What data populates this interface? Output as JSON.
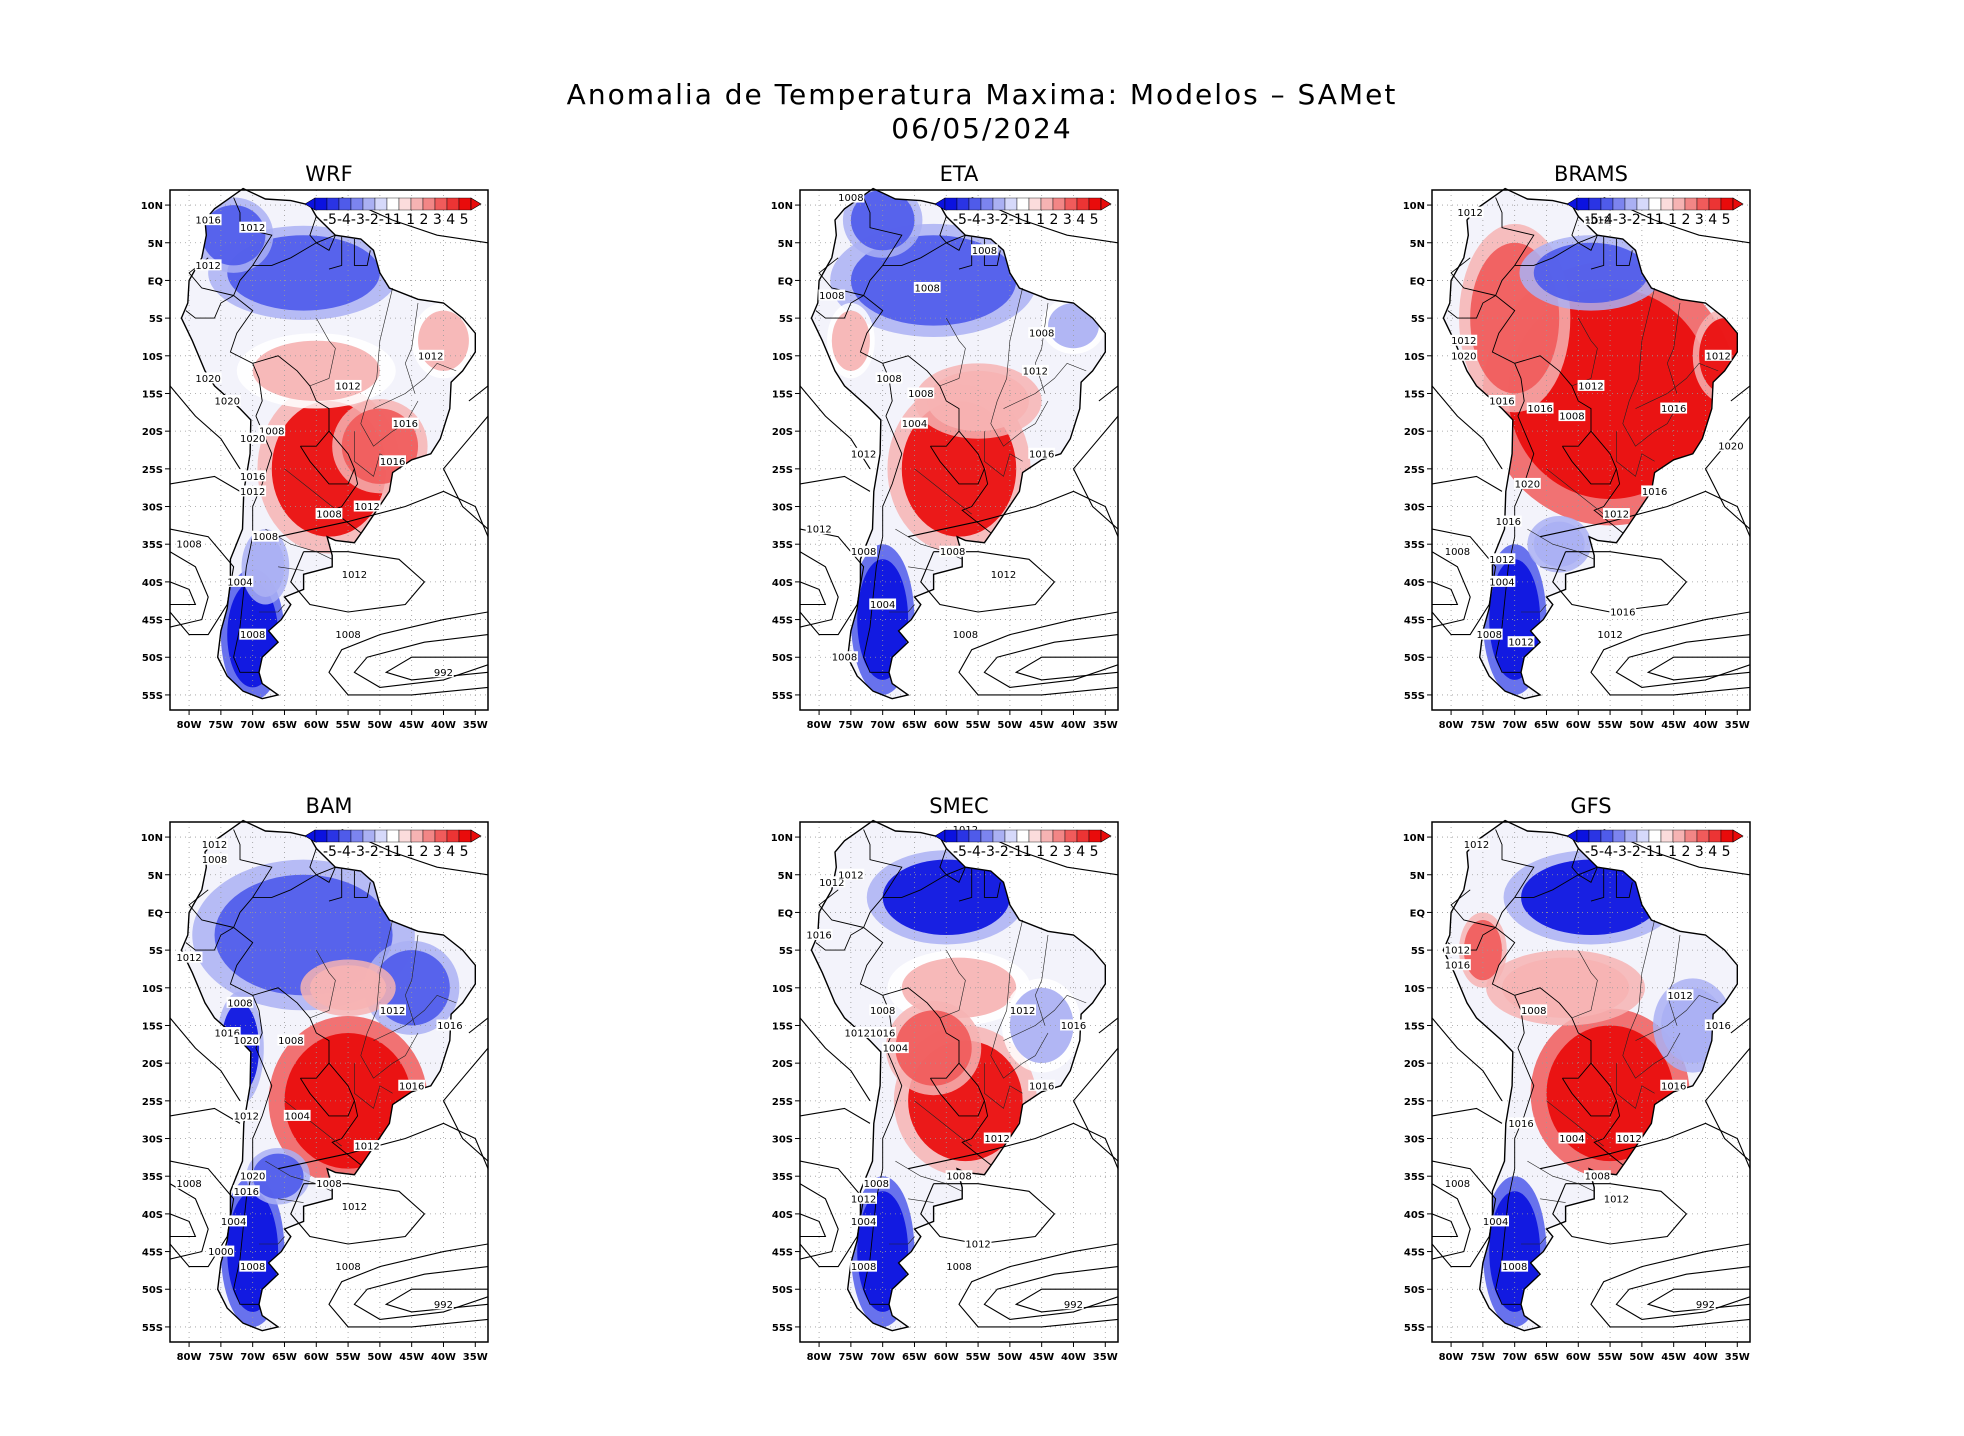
{
  "title": {
    "line1": "Anomalia de Temperatura Maxima: Modelos – SAMet",
    "line2": "06/05/2024"
  },
  "colors": {
    "cold_strong": "#0b12e0",
    "cold_mid": "#4f5bea",
    "cold_light": "#aab0f3",
    "neutral": "#ffffff",
    "warm_light": "#f6b3b3",
    "warm_mid": "#f05b5b",
    "warm_strong": "#e90b0b",
    "coast": "#000000"
  },
  "map_extent": {
    "lon_min": -83,
    "lon_max": -33,
    "lat_min": -57,
    "lat_max": 12
  },
  "axes": {
    "lat_labels": [
      "10N",
      "5N",
      "EQ",
      "5S",
      "10S",
      "15S",
      "20S",
      "25S",
      "30S",
      "35S",
      "40S",
      "45S",
      "50S",
      "55S"
    ],
    "lat_values": [
      10,
      5,
      0,
      -5,
      -10,
      -15,
      -20,
      -25,
      -30,
      -35,
      -40,
      -45,
      -50,
      -55
    ],
    "lon_labels": [
      "80W",
      "75W",
      "70W",
      "65W",
      "60W",
      "55W",
      "50W",
      "45W",
      "40W",
      "35W"
    ],
    "lon_values": [
      -80,
      -75,
      -70,
      -65,
      -60,
      -55,
      -50,
      -45,
      -40,
      -35
    ]
  },
  "colorbar": {
    "labels": [
      "-5",
      "-4",
      "-3",
      "-2",
      "-1",
      "1",
      "1",
      "2",
      "3",
      "4",
      "5"
    ],
    "display": "-5-4-3-2-11 1 2 3 4 5"
  },
  "panels": [
    {
      "name": "WRF",
      "anomalies": [
        {
          "lon": -58,
          "lat": -25,
          "value": 4.5,
          "rx": 9,
          "ry": 9
        },
        {
          "lon": -50,
          "lat": -22,
          "value": 3.5,
          "rx": 6,
          "ry": 5
        },
        {
          "lon": -60,
          "lat": -12,
          "value": 1.5,
          "rx": 10,
          "ry": 4
        },
        {
          "lon": -62,
          "lat": 1,
          "value": -3.0,
          "rx": 12,
          "ry": 5
        },
        {
          "lon": -73,
          "lat": 6,
          "value": -2.5,
          "rx": 5,
          "ry": 4
        },
        {
          "lon": -70,
          "lat": -47,
          "value": -5.0,
          "rx": 4,
          "ry": 7
        },
        {
          "lon": -68,
          "lat": -38,
          "value": -2.0,
          "rx": 3,
          "ry": 4
        },
        {
          "lon": -40,
          "lat": -8,
          "value": 1.0,
          "rx": 4,
          "ry": 4
        }
      ],
      "isobar_labels": [
        {
          "text": "1016",
          "lon": -77,
          "lat": 8
        },
        {
          "text": "1012",
          "lon": -70,
          "lat": 7
        },
        {
          "text": "1012",
          "lon": -77,
          "lat": 2
        },
        {
          "text": "1012",
          "lon": -42,
          "lat": -10
        },
        {
          "text": "1020",
          "lon": -77,
          "lat": -13
        },
        {
          "text": "1020",
          "lon": -74,
          "lat": -16
        },
        {
          "text": "1012",
          "lon": -55,
          "lat": -14
        },
        {
          "text": "1016",
          "lon": -46,
          "lat": -19
        },
        {
          "text": "1008",
          "lon": -67,
          "lat": -20
        },
        {
          "text": "1020",
          "lon": -70,
          "lat": -21
        },
        {
          "text": "1016",
          "lon": -48,
          "lat": -24
        },
        {
          "text": "1016",
          "lon": -70,
          "lat": -26
        },
        {
          "text": "1012",
          "lon": -70,
          "lat": -28
        },
        {
          "text": "1012",
          "lon": -52,
          "lat": -30
        },
        {
          "text": "1008",
          "lon": -58,
          "lat": -31
        },
        {
          "text": "1008",
          "lon": -68,
          "lat": -34
        },
        {
          "text": "1008",
          "lon": -80,
          "lat": -35
        },
        {
          "text": "1012",
          "lon": -54,
          "lat": -39
        },
        {
          "text": "1004",
          "lon": -72,
          "lat": -40
        },
        {
          "text": "1008",
          "lon": -70,
          "lat": -47
        },
        {
          "text": "1008",
          "lon": -55,
          "lat": -47
        },
        {
          "text": "992",
          "lon": -40,
          "lat": -52
        }
      ]
    },
    {
      "name": "ETA",
      "anomalies": [
        {
          "lon": -58,
          "lat": -25,
          "value": 4.5,
          "rx": 9,
          "ry": 9
        },
        {
          "lon": -55,
          "lat": -16,
          "value": 2.0,
          "rx": 8,
          "ry": 4
        },
        {
          "lon": -62,
          "lat": 0,
          "value": -3.5,
          "rx": 13,
          "ry": 6
        },
        {
          "lon": -70,
          "lat": 8,
          "value": -2.5,
          "rx": 5,
          "ry": 4
        },
        {
          "lon": -70,
          "lat": -45,
          "value": -5.0,
          "rx": 4,
          "ry": 8
        },
        {
          "lon": -75,
          "lat": -8,
          "value": 1.5,
          "rx": 3,
          "ry": 4
        },
        {
          "lon": -40,
          "lat": -6,
          "value": -1.0,
          "rx": 4,
          "ry": 3
        }
      ],
      "isobar_labels": [
        {
          "text": "1008",
          "lon": -75,
          "lat": 11
        },
        {
          "text": "1008",
          "lon": -54,
          "lat": 4
        },
        {
          "text": "1008",
          "lon": -63,
          "lat": -1
        },
        {
          "text": "1008",
          "lon": -78,
          "lat": -2
        },
        {
          "text": "1008",
          "lon": -45,
          "lat": -7
        },
        {
          "text": "1012",
          "lon": -46,
          "lat": -12
        },
        {
          "text": "1008",
          "lon": -69,
          "lat": -13
        },
        {
          "text": "1008",
          "lon": -64,
          "lat": -15
        },
        {
          "text": "1004",
          "lon": -65,
          "lat": -19
        },
        {
          "text": "1012",
          "lon": -73,
          "lat": -23
        },
        {
          "text": "1016",
          "lon": -45,
          "lat": -23
        },
        {
          "text": "1012",
          "lon": -80,
          "lat": -33
        },
        {
          "text": "1008",
          "lon": -73,
          "lat": -36
        },
        {
          "text": "1008",
          "lon": -59,
          "lat": -36
        },
        {
          "text": "1012",
          "lon": -51,
          "lat": -39
        },
        {
          "text": "1004",
          "lon": -70,
          "lat": -43
        },
        {
          "text": "1008",
          "lon": -76,
          "lat": -50
        },
        {
          "text": "1008",
          "lon": -57,
          "lat": -47
        }
      ]
    },
    {
      "name": "BRAMS",
      "anomalies": [
        {
          "lon": -55,
          "lat": -15,
          "value": 5.0,
          "rx": 16,
          "ry": 14
        },
        {
          "lon": -70,
          "lat": -5,
          "value": 3.5,
          "rx": 7,
          "ry": 10
        },
        {
          "lon": -58,
          "lat": 1,
          "value": -3.0,
          "rx": 9,
          "ry": 4
        },
        {
          "lon": -70,
          "lat": -45,
          "value": -5.0,
          "rx": 4,
          "ry": 8
        },
        {
          "lon": -63,
          "lat": -35,
          "value": -2.0,
          "rx": 4,
          "ry": 3
        },
        {
          "lon": -37,
          "lat": -10,
          "value": 4.0,
          "rx": 4,
          "ry": 5
        }
      ],
      "isobar_labels": [
        {
          "text": "1012",
          "lon": -77,
          "lat": 9
        },
        {
          "text": "1012",
          "lon": -57,
          "lat": 8
        },
        {
          "text": "1012",
          "lon": -78,
          "lat": -8
        },
        {
          "text": "1012",
          "lon": -38,
          "lat": -10
        },
        {
          "text": "1020",
          "lon": -78,
          "lat": -10
        },
        {
          "text": "1012",
          "lon": -58,
          "lat": -14
        },
        {
          "text": "1016",
          "lon": -72,
          "lat": -16
        },
        {
          "text": "1016",
          "lon": -66,
          "lat": -17
        },
        {
          "text": "1008",
          "lon": -61,
          "lat": -18
        },
        {
          "text": "1016",
          "lon": -45,
          "lat": -17
        },
        {
          "text": "1020",
          "lon": -36,
          "lat": -22
        },
        {
          "text": "1020",
          "lon": -68,
          "lat": -27
        },
        {
          "text": "1016",
          "lon": -48,
          "lat": -28
        },
        {
          "text": "1012",
          "lon": -54,
          "lat": -31
        },
        {
          "text": "1016",
          "lon": -71,
          "lat": -32
        },
        {
          "text": "1008",
          "lon": -79,
          "lat": -36
        },
        {
          "text": "1012",
          "lon": -72,
          "lat": -37
        },
        {
          "text": "1004",
          "lon": -72,
          "lat": -40
        },
        {
          "text": "1016",
          "lon": -53,
          "lat": -44
        },
        {
          "text": "1012",
          "lon": -55,
          "lat": -47
        },
        {
          "text": "1008",
          "lon": -74,
          "lat": -47
        },
        {
          "text": "1012",
          "lon": -69,
          "lat": -48
        }
      ]
    },
    {
      "name": "BAM",
      "anomalies": [
        {
          "lon": -55,
          "lat": -25,
          "value": 5.0,
          "rx": 10,
          "ry": 9
        },
        {
          "lon": -62,
          "lat": -3,
          "value": -3.0,
          "rx": 14,
          "ry": 8
        },
        {
          "lon": -45,
          "lat": -10,
          "value": -3.5,
          "rx": 6,
          "ry": 5
        },
        {
          "lon": -55,
          "lat": -10,
          "value": 2.0,
          "rx": 6,
          "ry": 3
        },
        {
          "lon": -70,
          "lat": -45,
          "value": -5.0,
          "rx": 4,
          "ry": 8
        },
        {
          "lon": -72,
          "lat": -18,
          "value": -4.0,
          "rx": 3,
          "ry": 6
        },
        {
          "lon": -66,
          "lat": -35,
          "value": -3.0,
          "rx": 4,
          "ry": 3
        }
      ],
      "isobar_labels": [
        {
          "text": "1012",
          "lon": -76,
          "lat": 9
        },
        {
          "text": "1008",
          "lon": -76,
          "lat": 7
        },
        {
          "text": "1012",
          "lon": -80,
          "lat": -6
        },
        {
          "text": "1008",
          "lon": -72,
          "lat": -12
        },
        {
          "text": "1012",
          "lon": -48,
          "lat": -13
        },
        {
          "text": "1016",
          "lon": -74,
          "lat": -16
        },
        {
          "text": "1020",
          "lon": -71,
          "lat": -17
        },
        {
          "text": "1008",
          "lon": -64,
          "lat": -17
        },
        {
          "text": "1016",
          "lon": -39,
          "lat": -15
        },
        {
          "text": "1016",
          "lon": -45,
          "lat": -23
        },
        {
          "text": "1012",
          "lon": -71,
          "lat": -27
        },
        {
          "text": "1004",
          "lon": -63,
          "lat": -27
        },
        {
          "text": "1012",
          "lon": -52,
          "lat": -31
        },
        {
          "text": "1020",
          "lon": -70,
          "lat": -35
        },
        {
          "text": "1016",
          "lon": -71,
          "lat": -37
        },
        {
          "text": "1008",
          "lon": -58,
          "lat": -36
        },
        {
          "text": "1008",
          "lon": -80,
          "lat": -36
        },
        {
          "text": "1012",
          "lon": -54,
          "lat": -39
        },
        {
          "text": "1004",
          "lon": -73,
          "lat": -41
        },
        {
          "text": "1000",
          "lon": -75,
          "lat": -45
        },
        {
          "text": "1008",
          "lon": -70,
          "lat": -47
        },
        {
          "text": "1008",
          "lon": -55,
          "lat": -47
        },
        {
          "text": "992",
          "lon": -40,
          "lat": -52
        }
      ]
    },
    {
      "name": "SMEC",
      "anomalies": [
        {
          "lon": -57,
          "lat": -25,
          "value": 4.5,
          "rx": 9,
          "ry": 8
        },
        {
          "lon": -60,
          "lat": 2,
          "value": -4.0,
          "rx": 10,
          "ry": 5
        },
        {
          "lon": -58,
          "lat": -10,
          "value": 1.5,
          "rx": 9,
          "ry": 4
        },
        {
          "lon": -62,
          "lat": -18,
          "value": 3.0,
          "rx": 6,
          "ry": 5
        },
        {
          "lon": -70,
          "lat": -45,
          "value": -5.0,
          "rx": 4,
          "ry": 8
        },
        {
          "lon": -45,
          "lat": -15,
          "value": -1.5,
          "rx": 5,
          "ry": 5
        }
      ],
      "isobar_labels": [
        {
          "text": "1012",
          "lon": -57,
          "lat": 11
        },
        {
          "text": "1012",
          "lon": -78,
          "lat": 4
        },
        {
          "text": "1012",
          "lon": -75,
          "lat": 5
        },
        {
          "text": "1016",
          "lon": -80,
          "lat": -3
        },
        {
          "text": "1008",
          "lon": -70,
          "lat": -13
        },
        {
          "text": "1012",
          "lon": -48,
          "lat": -13
        },
        {
          "text": "1012",
          "lon": -74,
          "lat": -16
        },
        {
          "text": "1016",
          "lon": -70,
          "lat": -16
        },
        {
          "text": "1016",
          "lon": -40,
          "lat": -15
        },
        {
          "text": "1004",
          "lon": -68,
          "lat": -18
        },
        {
          "text": "1016",
          "lon": -45,
          "lat": -23
        },
        {
          "text": "1012",
          "lon": -52,
          "lat": -30
        },
        {
          "text": "1008",
          "lon": -71,
          "lat": -36
        },
        {
          "text": "1008",
          "lon": -58,
          "lat": -35
        },
        {
          "text": "1012",
          "lon": -73,
          "lat": -38
        },
        {
          "text": "1004",
          "lon": -73,
          "lat": -41
        },
        {
          "text": "1012",
          "lon": -55,
          "lat": -44
        },
        {
          "text": "1008",
          "lon": -73,
          "lat": -47
        },
        {
          "text": "1008",
          "lon": -58,
          "lat": -47
        },
        {
          "text": "992",
          "lon": -40,
          "lat": -52
        }
      ]
    },
    {
      "name": "GFS",
      "anomalies": [
        {
          "lon": -55,
          "lat": -24,
          "value": 5.0,
          "rx": 10,
          "ry": 9
        },
        {
          "lon": -58,
          "lat": 2,
          "value": -4.5,
          "rx": 11,
          "ry": 5
        },
        {
          "lon": -62,
          "lat": -10,
          "value": 2.0,
          "rx": 10,
          "ry": 4
        },
        {
          "lon": -70,
          "lat": -45,
          "value": -5.0,
          "rx": 4,
          "ry": 8
        },
        {
          "lon": -42,
          "lat": -15,
          "value": -2.0,
          "rx": 5,
          "ry": 5
        },
        {
          "lon": -75,
          "lat": -5,
          "value": 2.5,
          "rx": 3,
          "ry": 4
        }
      ],
      "isobar_labels": [
        {
          "text": "1012",
          "lon": -76,
          "lat": 9
        },
        {
          "text": "1012",
          "lon": -79,
          "lat": -5
        },
        {
          "text": "1016",
          "lon": -79,
          "lat": -7
        },
        {
          "text": "1008",
          "lon": -67,
          "lat": -13
        },
        {
          "text": "1012",
          "lon": -44,
          "lat": -11
        },
        {
          "text": "1016",
          "lon": -38,
          "lat": -15
        },
        {
          "text": "1016",
          "lon": -45,
          "lat": -23
        },
        {
          "text": "1016",
          "lon": -69,
          "lat": -28
        },
        {
          "text": "1004",
          "lon": -61,
          "lat": -30
        },
        {
          "text": "1012",
          "lon": -52,
          "lat": -30
        },
        {
          "text": "1008",
          "lon": -57,
          "lat": -35
        },
        {
          "text": "1008",
          "lon": -79,
          "lat": -36
        },
        {
          "text": "1012",
          "lon": -54,
          "lat": -38
        },
        {
          "text": "1004",
          "lon": -73,
          "lat": -41
        },
        {
          "text": "1008",
          "lon": -70,
          "lat": -47
        },
        {
          "text": "992",
          "lon": -40,
          "lat": -52
        }
      ]
    }
  ]
}
